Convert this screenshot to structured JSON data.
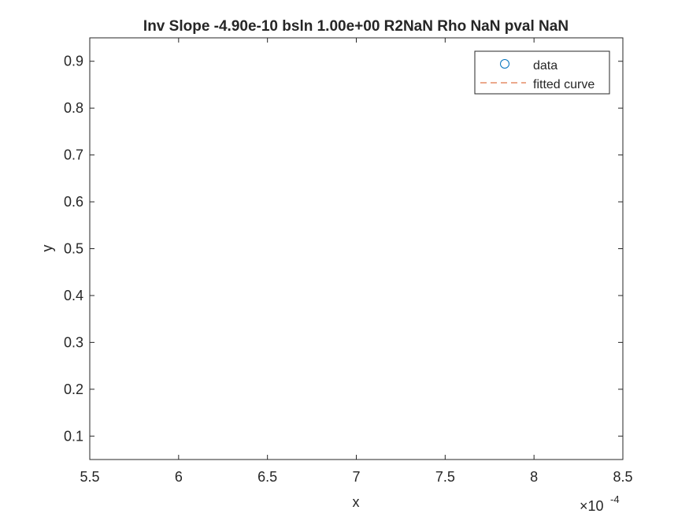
{
  "chart_data": {
    "type": "scatter",
    "title": "Inv Slope -4.90e-10 bsln 1.00e+00 R2NaN Rho NaN pval NaN",
    "xlabel": "x",
    "ylabel": "y",
    "xlim": [
      0.00055,
      0.00085
    ],
    "ylim": [
      0.05,
      0.95
    ],
    "x_exponent_label": "×10",
    "x_exponent_power": "-4",
    "x_ticks": [
      5.5,
      6,
      6.5,
      7,
      7.5,
      8,
      8.5
    ],
    "x_tick_labels": [
      "5.5",
      "6",
      "6.5",
      "7",
      "7.5",
      "8",
      "8.5"
    ],
    "y_ticks": [
      0.1,
      0.2,
      0.3,
      0.4,
      0.5,
      0.6,
      0.7,
      0.8,
      0.9
    ],
    "y_tick_labels": [
      "0.1",
      "0.2",
      "0.3",
      "0.4",
      "0.5",
      "0.6",
      "0.7",
      "0.8",
      "0.9"
    ],
    "grid": false,
    "legend_position": "top-right",
    "series": [
      {
        "name": "data",
        "marker": "circle",
        "color": "#0072BD",
        "x": [],
        "y": []
      },
      {
        "name": "fitted curve",
        "line_style": "dashed",
        "color": "#D95319",
        "x": [],
        "y": []
      }
    ],
    "colors": {
      "axis": "#262626",
      "background": "#ffffff",
      "data_marker": "#0072BD",
      "fit_line": "#D95319"
    }
  }
}
